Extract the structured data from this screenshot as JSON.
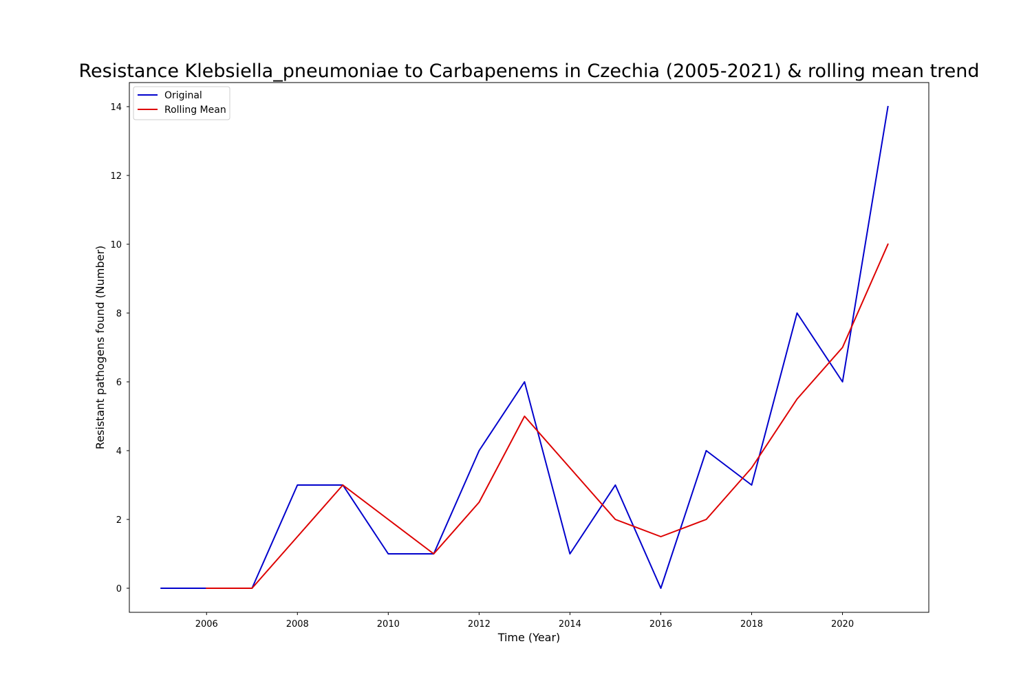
{
  "chart_data": {
    "type": "line",
    "title": "Resistance Klebsiella_pneumoniae to Carbapenems in Czechia (2005-2021) & rolling mean trend",
    "xlabel": "Time (Year)",
    "ylabel": "Resistant pathogens found (Number)",
    "xlim": [
      2004.3,
      2021.9
    ],
    "ylim": [
      -0.7,
      14.7
    ],
    "x_ticks": [
      2006,
      2008,
      2010,
      2012,
      2014,
      2016,
      2018,
      2020
    ],
    "y_ticks": [
      0,
      2,
      4,
      6,
      8,
      10,
      12,
      14
    ],
    "grid": false,
    "legend_position": "top-left",
    "series": [
      {
        "name": "Original",
        "color": "#0000cc",
        "x": [
          2005,
          2006,
          2007,
          2008,
          2009,
          2010,
          2011,
          2012,
          2013,
          2014,
          2015,
          2016,
          2017,
          2018,
          2019,
          2020,
          2021
        ],
        "y": [
          0,
          0,
          0,
          3,
          3,
          1,
          1,
          4,
          6,
          1,
          3,
          0,
          4,
          3,
          8,
          6,
          14
        ]
      },
      {
        "name": "Rolling Mean",
        "color": "#dd0000",
        "x": [
          2006,
          2007,
          2008,
          2009,
          2010,
          2011,
          2012,
          2013,
          2014,
          2015,
          2016,
          2017,
          2018,
          2019,
          2020,
          2021
        ],
        "y": [
          0,
          0,
          1.5,
          3,
          2,
          1,
          2.5,
          5,
          3.5,
          2,
          1.5,
          2,
          3.5,
          5.5,
          7,
          10
        ]
      }
    ]
  }
}
